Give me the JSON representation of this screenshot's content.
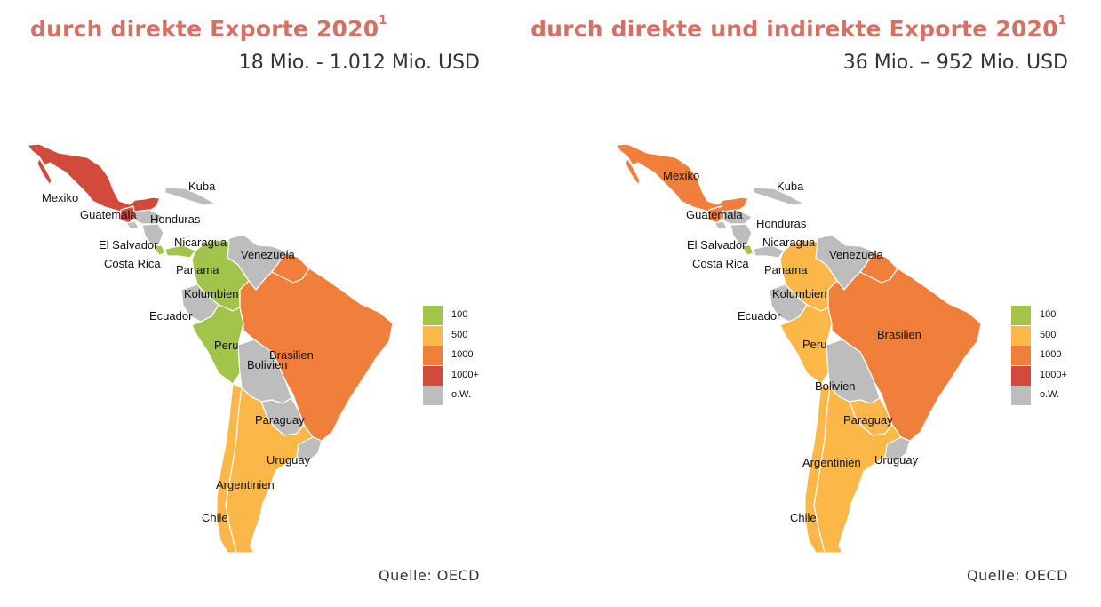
{
  "colors": {
    "100": "#a3c44a",
    "500": "#fbb848",
    "1000": "#f07f3c",
    "1000+": "#d24a3c",
    "ow": "#bdbdbd",
    "title": "#d76f63"
  },
  "legend": [
    {
      "key": "100",
      "label": "100"
    },
    {
      "key": "500",
      "label": "500"
    },
    {
      "key": "1000",
      "label": "1000"
    },
    {
      "key": "1000+",
      "label": "1000+"
    },
    {
      "key": "ow",
      "label": "o.W."
    }
  ],
  "maps": [
    {
      "title": "durch direkte Exporte 2020",
      "title_sup": "1",
      "subtitle": "18 Mio. - 1.012 Mio. USD",
      "source": "Quelle: OECD",
      "countries": {
        "mexiko": {
          "label": "Mexiko",
          "category": "1000+"
        },
        "guatemala": {
          "label": "Guatemala",
          "category": "1000+"
        },
        "honduras": {
          "label": "Honduras",
          "category": "ow"
        },
        "elsalvador": {
          "label": "El Salvador",
          "category": "ow"
        },
        "nicaragua": {
          "label": "Nicaragua",
          "category": "ow"
        },
        "costarica": {
          "label": "Costa Rica",
          "category": "100"
        },
        "panama": {
          "label": "Panama",
          "category": "100"
        },
        "kuba": {
          "label": "Kuba",
          "category": "ow"
        },
        "venezuela": {
          "label": "Venezuela",
          "category": "ow"
        },
        "kolumbien": {
          "label": "Kolumbien",
          "category": "100"
        },
        "ecuador": {
          "label": "Ecuador",
          "category": "ow"
        },
        "peru": {
          "label": "Peru",
          "category": "100"
        },
        "brasilien": {
          "label": "Brasilien",
          "category": "1000"
        },
        "bolivien": {
          "label": "Bolivien",
          "category": "ow"
        },
        "paraguay": {
          "label": "Paraguay",
          "category": "ow"
        },
        "uruguay": {
          "label": "Uruguay",
          "category": "ow"
        },
        "argentinien": {
          "label": "Argentinien",
          "category": "500"
        },
        "chile": {
          "label": "Chile",
          "category": "500"
        },
        "guyanas": {
          "label": "",
          "category": "1000"
        }
      }
    },
    {
      "title": "durch direkte und indirekte Exporte 2020",
      "title_sup": "1",
      "subtitle": "36 Mio. – 952 Mio. USD",
      "source": "Quelle: OECD",
      "countries": {
        "mexiko": {
          "label": "Mexiko",
          "category": "1000"
        },
        "guatemala": {
          "label": "Guatemala",
          "category": "1000"
        },
        "honduras": {
          "label": "Honduras",
          "category": "ow"
        },
        "elsalvador": {
          "label": "El Salvador",
          "category": "ow"
        },
        "nicaragua": {
          "label": "Nicaragua",
          "category": "ow"
        },
        "costarica": {
          "label": "Costa Rica",
          "category": "100"
        },
        "panama": {
          "label": "Panama",
          "category": "ow"
        },
        "kuba": {
          "label": "Kuba",
          "category": "ow"
        },
        "venezuela": {
          "label": "Venezuela",
          "category": "ow"
        },
        "kolumbien": {
          "label": "Kolumbien",
          "category": "500"
        },
        "ecuador": {
          "label": "Ecuador",
          "category": "ow"
        },
        "peru": {
          "label": "Peru",
          "category": "500"
        },
        "brasilien": {
          "label": "Brasilien",
          "category": "1000"
        },
        "bolivien": {
          "label": "Bolivien",
          "category": "ow"
        },
        "paraguay": {
          "label": "Paraguay",
          "category": "500"
        },
        "uruguay": {
          "label": "Uruguay",
          "category": "ow"
        },
        "argentinien": {
          "label": "Argentinien",
          "category": "500"
        },
        "chile": {
          "label": "Chile",
          "category": "500"
        },
        "guyanas": {
          "label": "",
          "category": "1000"
        }
      }
    }
  ]
}
